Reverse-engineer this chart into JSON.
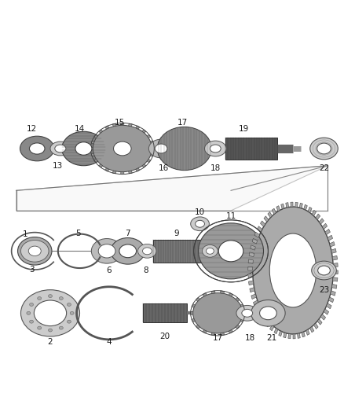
{
  "bg_color": "#ffffff",
  "line_color": "#404040",
  "label_color": "#1a1a1a",
  "fig_width": 4.38,
  "fig_height": 5.33,
  "dpi": 100,
  "lw_main": 0.8,
  "lw_thin": 0.5,
  "gray_dark": "#555555",
  "gray_mid": "#888888",
  "gray_light": "#bbbbbb",
  "gray_very_light": "#dddddd",
  "gray_belt": "#999999",
  "label_fs": 7.5
}
